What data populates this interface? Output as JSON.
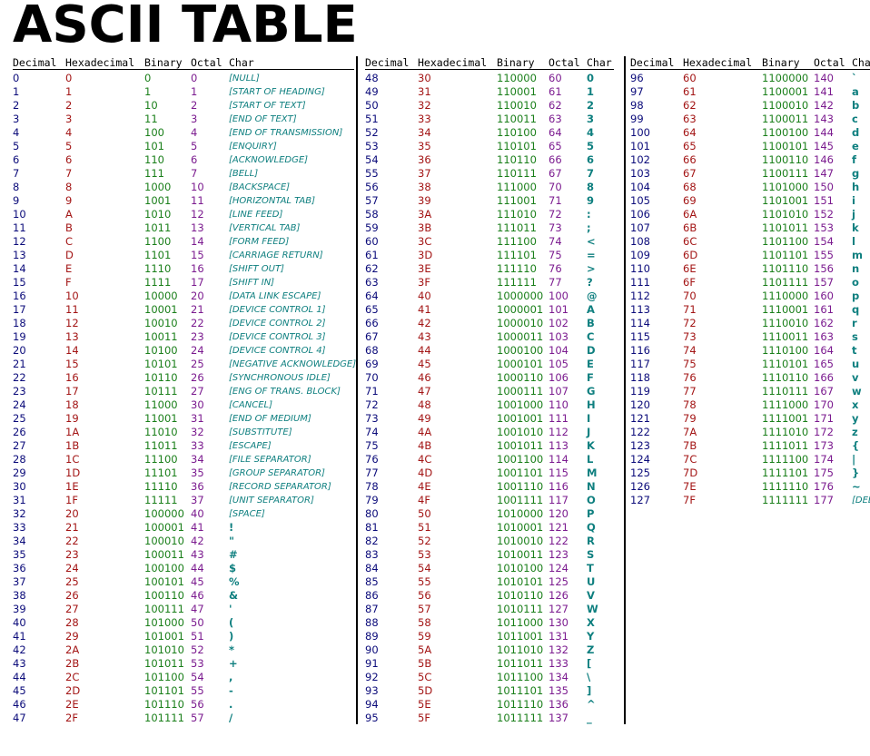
{
  "title": "ASCII TABLE",
  "headers": [
    "Decimal",
    "Hexadecimal",
    "Binary",
    "Octal",
    "Char"
  ],
  "colors": {
    "decimal": "#0b0b7a",
    "hex": "#a31515",
    "binary": "#1a7f1a",
    "octal": "#7b1b8f",
    "char": "#0e7f7f"
  },
  "control_names": [
    "[NULL]",
    "[START OF HEADING]",
    "[START OF TEXT]",
    "[END OF TEXT]",
    "[END OF TRANSMISSION]",
    "[ENQUIRY]",
    "[ACKNOWLEDGE]",
    "[BELL]",
    "[BACKSPACE]",
    "[HORIZONTAL TAB]",
    "[LINE FEED]",
    "[VERTICAL TAB]",
    "[FORM FEED]",
    "[CARRIAGE RETURN]",
    "[SHIFT OUT]",
    "[SHIFT IN]",
    "[DATA LINK ESCAPE]",
    "[DEVICE CONTROL 1]",
    "[DEVICE CONTROL 2]",
    "[DEVICE CONTROL 3]",
    "[DEVICE CONTROL 4]",
    "[NEGATIVE ACKNOWLEDGE]",
    "[SYNCHRONOUS IDLE]",
    "[ENG OF TRANS. BLOCK]",
    "[CANCEL]",
    "[END OF MEDIUM]",
    "[SUBSTITUTE]",
    "[ESCAPE]",
    "[FILE SEPARATOR]",
    "[GROUP SEPARATOR]",
    "[RECORD SEPARATOR]",
    "[UNIT SEPARATOR]",
    "[SPACE]"
  ],
  "del_label": "[DEL]",
  "start_code": 0,
  "end_code": 127,
  "rows_per_column": 48
}
